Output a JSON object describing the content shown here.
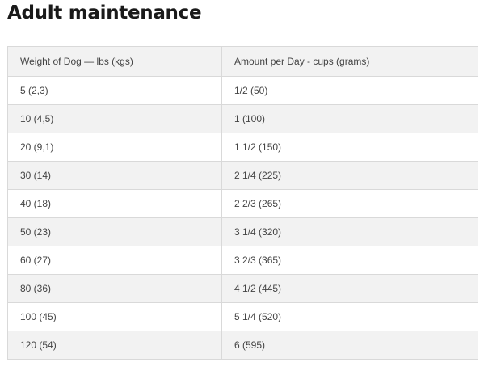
{
  "title": "Adult maintenance",
  "table": {
    "headers": [
      "Weight of Dog — lbs (kgs)",
      "Amount per Day - cups (grams)"
    ],
    "rows": [
      [
        "5 (2,3)",
        "1/2 (50)"
      ],
      [
        "10 (4,5)",
        "1 (100)"
      ],
      [
        "20 (9,1)",
        "1 1/2 (150)"
      ],
      [
        "30 (14)",
        "2 1/4 (225)"
      ],
      [
        "40 (18)",
        "2 2/3 (265)"
      ],
      [
        "50 (23)",
        "3 1/4 (320)"
      ],
      [
        "60 (27)",
        "3 2/3 (365)"
      ],
      [
        "80 (36)",
        "4 1/2 (445)"
      ],
      [
        "100 (45)",
        "5 1/4 (520)"
      ],
      [
        "120 (54)",
        "6 (595)"
      ]
    ]
  }
}
